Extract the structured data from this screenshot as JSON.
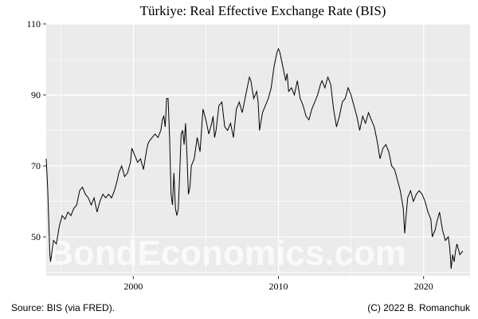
{
  "chart_data": {
    "type": "line",
    "title": "Türkiye: Real Effective Exchange Rate (BIS)",
    "xlabel": "",
    "ylabel": "",
    "xlim": [
      1994.0,
      2023.2
    ],
    "ylim": [
      39,
      110
    ],
    "xticks": [
      2000,
      2010,
      2020
    ],
    "yticks": [
      50,
      70,
      90,
      110
    ],
    "grid": true,
    "watermark": "BondEconomics.com",
    "colors": {
      "panel": "#ebebeb",
      "grid": "#ffffff",
      "line": "#000000",
      "watermark": "#ffffff"
    },
    "series": [
      {
        "values": [
          [
            1994.0,
            72
          ],
          [
            1994.1,
            64
          ],
          [
            1994.25,
            45
          ],
          [
            1994.3,
            43
          ],
          [
            1994.5,
            49
          ],
          [
            1994.7,
            48
          ],
          [
            1994.9,
            53
          ],
          [
            1995.1,
            56
          ],
          [
            1995.3,
            55
          ],
          [
            1995.5,
            57
          ],
          [
            1995.7,
            56
          ],
          [
            1995.9,
            58
          ],
          [
            1996.1,
            59
          ],
          [
            1996.3,
            63
          ],
          [
            1996.5,
            64
          ],
          [
            1996.7,
            62
          ],
          [
            1996.9,
            61
          ],
          [
            1997.1,
            59
          ],
          [
            1997.3,
            61
          ],
          [
            1997.5,
            57
          ],
          [
            1997.7,
            60
          ],
          [
            1997.9,
            62
          ],
          [
            1998.1,
            61
          ],
          [
            1998.3,
            62
          ],
          [
            1998.5,
            61
          ],
          [
            1998.7,
            63
          ],
          [
            1998.9,
            66
          ],
          [
            1999.0,
            68
          ],
          [
            1999.2,
            70
          ],
          [
            1999.4,
            67
          ],
          [
            1999.6,
            68
          ],
          [
            1999.8,
            71
          ],
          [
            1999.9,
            75
          ],
          [
            2000.1,
            73
          ],
          [
            2000.3,
            71
          ],
          [
            2000.5,
            72
          ],
          [
            2000.7,
            69
          ],
          [
            2000.9,
            74
          ],
          [
            2001.0,
            76
          ],
          [
            2001.1,
            77
          ],
          [
            2001.3,
            78
          ],
          [
            2001.5,
            79
          ],
          [
            2001.7,
            78
          ],
          [
            2001.9,
            80
          ],
          [
            2002.0,
            83
          ],
          [
            2002.1,
            84
          ],
          [
            2002.2,
            81
          ],
          [
            2002.3,
            89
          ],
          [
            2002.4,
            89
          ],
          [
            2002.5,
            78
          ],
          [
            2002.6,
            62
          ],
          [
            2002.7,
            59
          ],
          [
            2002.8,
            68
          ],
          [
            2002.9,
            58
          ],
          [
            2003.0,
            56
          ],
          [
            2003.1,
            58
          ],
          [
            2003.2,
            68
          ],
          [
            2003.3,
            79
          ],
          [
            2003.4,
            80
          ],
          [
            2003.5,
            76
          ],
          [
            2003.6,
            82
          ],
          [
            2003.7,
            73
          ],
          [
            2003.8,
            62
          ],
          [
            2003.9,
            64
          ],
          [
            2004.0,
            70
          ],
          [
            2004.2,
            72
          ],
          [
            2004.4,
            78
          ],
          [
            2004.6,
            74
          ],
          [
            2004.8,
            86
          ],
          [
            2005.0,
            83
          ],
          [
            2005.2,
            79
          ],
          [
            2005.4,
            82
          ],
          [
            2005.5,
            84
          ],
          [
            2005.6,
            78
          ],
          [
            2005.7,
            80
          ],
          [
            2005.9,
            87
          ],
          [
            2006.1,
            88
          ],
          [
            2006.3,
            81
          ],
          [
            2006.5,
            80
          ],
          [
            2006.7,
            82
          ],
          [
            2006.9,
            78
          ],
          [
            2007.1,
            86
          ],
          [
            2007.3,
            88
          ],
          [
            2007.5,
            85
          ],
          [
            2007.7,
            89
          ],
          [
            2007.9,
            93
          ],
          [
            2008.0,
            95
          ],
          [
            2008.1,
            94
          ],
          [
            2008.3,
            89
          ],
          [
            2008.5,
            91
          ],
          [
            2008.6,
            88
          ],
          [
            2008.7,
            80
          ],
          [
            2008.9,
            85
          ],
          [
            2009.1,
            87
          ],
          [
            2009.3,
            89
          ],
          [
            2009.5,
            92
          ],
          [
            2009.7,
            98
          ],
          [
            2009.9,
            102
          ],
          [
            2010.0,
            103
          ],
          [
            2010.1,
            102
          ],
          [
            2010.3,
            98
          ],
          [
            2010.5,
            94
          ],
          [
            2010.6,
            96
          ],
          [
            2010.7,
            91
          ],
          [
            2010.9,
            92
          ],
          [
            2011.1,
            90
          ],
          [
            2011.3,
            94
          ],
          [
            2011.5,
            89
          ],
          [
            2011.7,
            87
          ],
          [
            2011.9,
            84
          ],
          [
            2012.1,
            83
          ],
          [
            2012.3,
            86
          ],
          [
            2012.5,
            88
          ],
          [
            2012.7,
            90
          ],
          [
            2012.9,
            93
          ],
          [
            2013.0,
            94
          ],
          [
            2013.2,
            92
          ],
          [
            2013.4,
            95
          ],
          [
            2013.6,
            93
          ],
          [
            2013.8,
            86
          ],
          [
            2014.0,
            81
          ],
          [
            2014.2,
            84
          ],
          [
            2014.4,
            88
          ],
          [
            2014.6,
            89
          ],
          [
            2014.8,
            92
          ],
          [
            2015.0,
            90
          ],
          [
            2015.2,
            87
          ],
          [
            2015.4,
            84
          ],
          [
            2015.6,
            80
          ],
          [
            2015.8,
            84
          ],
          [
            2016.0,
            82
          ],
          [
            2016.2,
            85
          ],
          [
            2016.4,
            83
          ],
          [
            2016.6,
            81
          ],
          [
            2016.8,
            77
          ],
          [
            2017.0,
            72
          ],
          [
            2017.2,
            75
          ],
          [
            2017.4,
            76
          ],
          [
            2017.6,
            74
          ],
          [
            2017.8,
            70
          ],
          [
            2018.0,
            69
          ],
          [
            2018.2,
            66
          ],
          [
            2018.4,
            63
          ],
          [
            2018.6,
            58
          ],
          [
            2018.7,
            51
          ],
          [
            2018.8,
            56
          ],
          [
            2018.9,
            61
          ],
          [
            2019.1,
            63
          ],
          [
            2019.3,
            60
          ],
          [
            2019.5,
            62
          ],
          [
            2019.7,
            63
          ],
          [
            2019.9,
            62
          ],
          [
            2020.1,
            60
          ],
          [
            2020.3,
            57
          ],
          [
            2020.5,
            55
          ],
          [
            2020.6,
            50
          ],
          [
            2020.8,
            52
          ],
          [
            2020.9,
            54
          ],
          [
            2021.1,
            57
          ],
          [
            2021.3,
            52
          ],
          [
            2021.5,
            49
          ],
          [
            2021.7,
            50
          ],
          [
            2021.8,
            47
          ],
          [
            2021.9,
            41
          ],
          [
            2022.0,
            45
          ],
          [
            2022.1,
            43
          ],
          [
            2022.2,
            46
          ],
          [
            2022.3,
            48
          ],
          [
            2022.5,
            45
          ],
          [
            2022.7,
            46
          ]
        ]
      }
    ]
  },
  "footer": {
    "source": "Source: BIS (via FRED).",
    "credit": "(C) 2022 B. Romanchuk"
  }
}
